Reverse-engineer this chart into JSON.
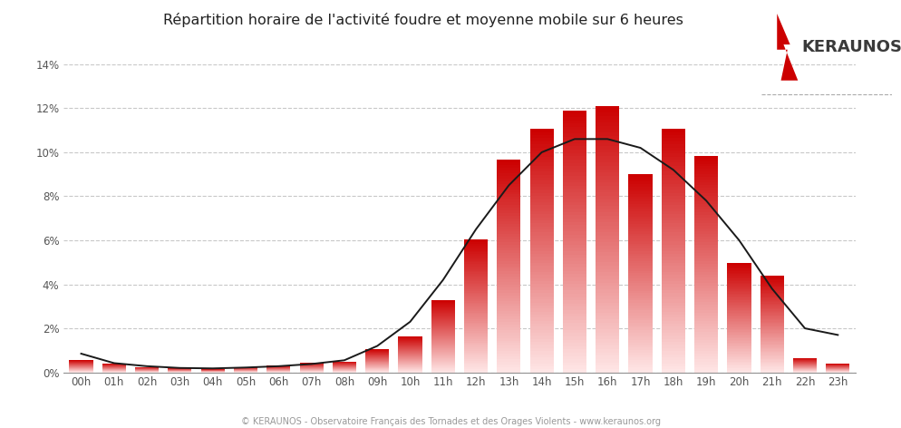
{
  "title": "Répartition horaire de l'activité foudre et moyenne mobile sur 6 heures",
  "hours": [
    "00h",
    "01h",
    "02h",
    "03h",
    "04h",
    "05h",
    "06h",
    "07h",
    "08h",
    "09h",
    "10h",
    "11h",
    "12h",
    "13h",
    "14h",
    "15h",
    "16h",
    "17h",
    "18h",
    "19h",
    "20h",
    "21h",
    "22h",
    "23h"
  ],
  "values": [
    0.55,
    0.4,
    0.25,
    0.2,
    0.15,
    0.25,
    0.3,
    0.45,
    0.5,
    1.05,
    1.65,
    3.3,
    6.05,
    9.65,
    11.05,
    11.9,
    12.1,
    9.0,
    11.05,
    9.85,
    4.95,
    4.4,
    0.65,
    0.4
  ],
  "moving_avg": [
    0.85,
    0.42,
    0.28,
    0.2,
    0.18,
    0.22,
    0.28,
    0.38,
    0.55,
    1.2,
    2.3,
    4.2,
    6.5,
    8.5,
    10.0,
    10.6,
    10.6,
    10.2,
    9.2,
    7.8,
    6.0,
    3.8,
    2.0,
    1.7
  ],
  "ylim_max": 14,
  "yticks": [
    0,
    2,
    4,
    6,
    8,
    10,
    12,
    14
  ],
  "background_color": "#ffffff",
  "bar_top_color": "#cc0000",
  "bar_bottom_color": "#ffe8e8",
  "line_color": "#1a1a1a",
  "grid_color": "#c8c8c8",
  "tick_color": "#555555",
  "footer_text": "© KERAUNOS - Observatoire Français des Tornades et des Orages Violents - www.keraunos.org",
  "logo_text": "KERAUNOS",
  "logo_bolt_color": "#cc0000",
  "logo_text_color": "#3a3a3a",
  "logo_underline_color": "#aaaaaa",
  "bar_width": 0.72
}
